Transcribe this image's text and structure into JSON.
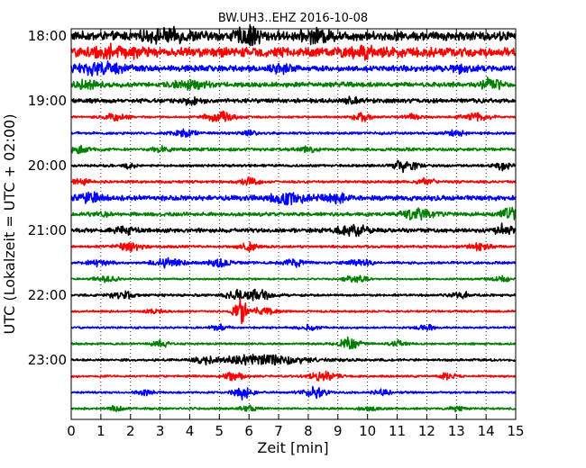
{
  "chart_data": {
    "type": "line",
    "title": "BW.UH3..EHZ 2016-10-08",
    "xlabel": "Zeit  [min]",
    "ylabel": "UTC (Lokalzeit = UTC + 02:00)",
    "xlim": [
      0,
      15
    ],
    "x_ticks": [
      "0",
      "1",
      "2",
      "3",
      "4",
      "5",
      "6",
      "7",
      "8",
      "9",
      "10",
      "11",
      "12",
      "13",
      "14",
      "15"
    ],
    "y_ticks": [
      "18:00",
      "19:00",
      "20:00",
      "21:00",
      "22:00",
      "23:00"
    ],
    "grid": "vertical-dotted",
    "trace_colors": [
      "#000000",
      "#ff0000",
      "#0000ff",
      "#008000"
    ],
    "traces": [
      {
        "start": "18:00",
        "base_amp": 0.55,
        "events": [
          [
            6.0,
            1.0,
            0.4
          ],
          [
            3.3,
            0.5,
            0.8
          ],
          [
            8.3,
            0.5,
            0.5
          ]
        ]
      },
      {
        "start": "18:15",
        "base_amp": 0.55,
        "events": [
          [
            1.5,
            0.5,
            0.8
          ],
          [
            10.0,
            0.4,
            0.8
          ]
        ]
      },
      {
        "start": "18:30",
        "base_amp": 0.35,
        "events": [
          [
            1.0,
            0.6,
            0.8
          ],
          [
            7.0,
            0.4,
            0.4
          ],
          [
            13.0,
            0.3,
            0.5
          ]
        ]
      },
      {
        "start": "18:45",
        "base_amp": 0.3,
        "events": [
          [
            0.5,
            0.4,
            0.4
          ],
          [
            4.0,
            0.4,
            0.6
          ],
          [
            14.2,
            0.8,
            0.3
          ]
        ]
      },
      {
        "start": "19:00",
        "base_amp": 0.25,
        "events": [
          [
            4.0,
            0.3,
            0.4
          ],
          [
            9.5,
            0.3,
            0.3
          ]
        ]
      },
      {
        "start": "19:15",
        "base_amp": 0.12,
        "events": [
          [
            1.5,
            0.5,
            0.4
          ],
          [
            5.0,
            0.6,
            0.5
          ],
          [
            9.8,
            0.5,
            0.3
          ],
          [
            11.5,
            0.4,
            0.3
          ],
          [
            13.7,
            0.4,
            0.5
          ]
        ]
      },
      {
        "start": "19:30",
        "base_amp": 0.15,
        "events": [
          [
            3.8,
            0.4,
            0.4
          ],
          [
            6.0,
            0.3,
            0.3
          ],
          [
            13.0,
            0.3,
            0.3
          ]
        ]
      },
      {
        "start": "19:45",
        "base_amp": 0.18,
        "events": [
          [
            0.3,
            0.5,
            0.3
          ],
          [
            3.0,
            0.3,
            0.3
          ],
          [
            8.0,
            0.3,
            0.3
          ]
        ]
      },
      {
        "start": "20:00",
        "base_amp": 0.15,
        "events": [
          [
            11.3,
            0.7,
            0.4
          ],
          [
            14.6,
            0.5,
            0.3
          ],
          [
            2.0,
            0.3,
            0.2
          ]
        ]
      },
      {
        "start": "20:15",
        "base_amp": 0.15,
        "events": [
          [
            6.0,
            0.4,
            0.3
          ],
          [
            12.0,
            0.4,
            0.3
          ],
          [
            0.3,
            0.3,
            0.3
          ]
        ]
      },
      {
        "start": "20:30",
        "base_amp": 0.3,
        "events": [
          [
            0.6,
            0.5,
            0.4
          ],
          [
            7.5,
            0.6,
            0.8
          ],
          [
            9.0,
            0.4,
            0.4
          ]
        ]
      },
      {
        "start": "20:45",
        "base_amp": 0.22,
        "events": [
          [
            11.7,
            0.6,
            0.5
          ],
          [
            14.8,
            0.7,
            0.3
          ],
          [
            1.0,
            0.3,
            0.3
          ]
        ]
      },
      {
        "start": "21:00",
        "base_amp": 0.25,
        "events": [
          [
            1.8,
            0.4,
            0.4
          ],
          [
            9.5,
            0.5,
            0.6
          ],
          [
            14.6,
            0.7,
            0.3
          ]
        ]
      },
      {
        "start": "21:15",
        "base_amp": 0.15,
        "events": [
          [
            2.0,
            0.5,
            0.4
          ],
          [
            6.0,
            0.4,
            0.3
          ],
          [
            13.8,
            0.4,
            0.4
          ]
        ]
      },
      {
        "start": "21:30",
        "base_amp": 0.15,
        "events": [
          [
            1.0,
            0.4,
            0.4
          ],
          [
            3.3,
            0.5,
            0.5
          ],
          [
            5.0,
            0.4,
            0.4
          ],
          [
            7.5,
            0.4,
            0.4
          ],
          [
            9.8,
            0.4,
            0.4
          ]
        ]
      },
      {
        "start": "21:45",
        "base_amp": 0.1,
        "events": [
          [
            1.2,
            0.4,
            0.4
          ],
          [
            9.6,
            0.4,
            0.4
          ],
          [
            14.5,
            0.3,
            0.4
          ]
        ]
      },
      {
        "start": "22:00",
        "base_amp": 0.15,
        "events": [
          [
            1.7,
            0.5,
            0.4
          ],
          [
            6.3,
            0.7,
            0.5
          ],
          [
            13.2,
            0.4,
            0.3
          ],
          [
            5.5,
            0.5,
            0.3
          ]
        ]
      },
      {
        "start": "22:15",
        "base_amp": 0.12,
        "events": [
          [
            5.7,
            1.8,
            0.2
          ],
          [
            6.5,
            0.5,
            0.4
          ],
          [
            2.8,
            0.3,
            0.3
          ]
        ]
      },
      {
        "start": "22:30",
        "base_amp": 0.12,
        "events": [
          [
            5.0,
            0.3,
            0.3
          ],
          [
            8.0,
            0.3,
            0.3
          ],
          [
            12.0,
            0.3,
            0.3
          ]
        ]
      },
      {
        "start": "22:45",
        "base_amp": 0.12,
        "events": [
          [
            3.0,
            0.4,
            0.3
          ],
          [
            9.4,
            0.7,
            0.4
          ],
          [
            11.0,
            0.4,
            0.3
          ]
        ]
      },
      {
        "start": "23:00",
        "base_amp": 0.15,
        "events": [
          [
            6.5,
            0.6,
            1.5
          ],
          [
            4.5,
            0.3,
            0.3
          ]
        ]
      },
      {
        "start": "23:15",
        "base_amp": 0.12,
        "events": [
          [
            8.5,
            0.5,
            0.5
          ],
          [
            5.5,
            0.4,
            0.4
          ],
          [
            12.7,
            0.4,
            0.3
          ]
        ]
      },
      {
        "start": "23:30",
        "base_amp": 0.12,
        "events": [
          [
            5.8,
            0.8,
            0.3
          ],
          [
            8.2,
            0.6,
            0.4
          ],
          [
            10.5,
            0.4,
            0.3
          ],
          [
            2.5,
            0.3,
            0.3
          ]
        ]
      },
      {
        "start": "23:45",
        "base_amp": 0.12,
        "events": [
          [
            1.5,
            0.3,
            0.3
          ],
          [
            6.0,
            0.3,
            0.3
          ],
          [
            10.0,
            0.3,
            0.3
          ],
          [
            13.0,
            0.3,
            0.3
          ]
        ]
      }
    ]
  }
}
